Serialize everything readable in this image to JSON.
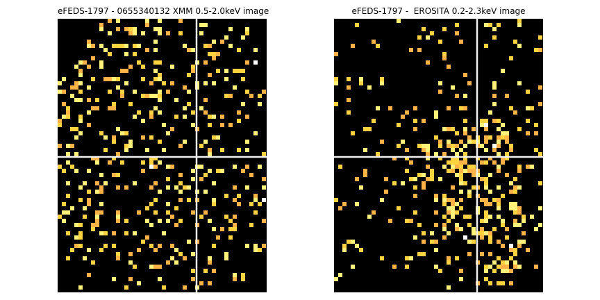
{
  "figure": {
    "left_title": "eFEDS-1797 - 0655340132 XMM 0.5-2.0keV image",
    "right_title": "eFEDS-1797 -  EROSITA 0.2-2.3keV image"
  },
  "colors": {
    "background": "#000000",
    "crosshair": "#f0f0f0",
    "pixel_low": "#ffb347",
    "pixel_mid": "#ffd23f",
    "pixel_high": "#fff27a",
    "pixel_peak": "#ffffff"
  },
  "panels": [
    {
      "image": "xmm-count-map",
      "colormap": "afmhot",
      "crosshair": {
        "col_fraction": 0.665,
        "row_fraction": 0.505
      }
    },
    {
      "image": "erosita-count-map",
      "colormap": "afmhot",
      "crosshair": {
        "col_fraction": 0.685,
        "row_fraction": 0.505
      }
    }
  ]
}
